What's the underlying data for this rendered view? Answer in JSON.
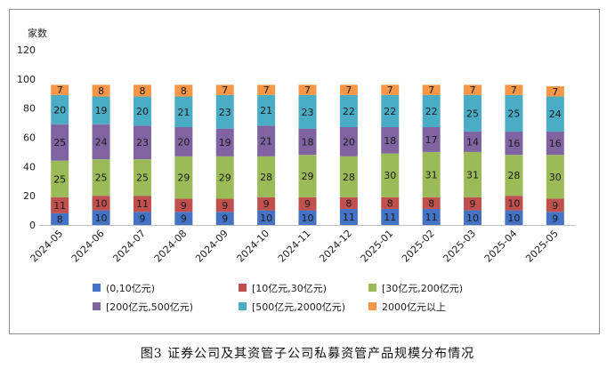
{
  "caption": "图3   证券公司及其资管子公司私募资管产品规模分布情况",
  "chart_data": {
    "type": "bar",
    "stacked": true,
    "ylabel": "家数",
    "ylim": [
      0,
      120
    ],
    "yticks": [
      0,
      20,
      40,
      60,
      80,
      100,
      120
    ],
    "categories": [
      "2024-05",
      "2024-06",
      "2024-07",
      "2024-08",
      "2024-09",
      "2024-10",
      "2024-11",
      "2024-12",
      "2025-01",
      "2025-02",
      "2025-03",
      "2025-04",
      "2025-05"
    ],
    "series": [
      {
        "name": "(0,10亿元)",
        "color": "#4472C4",
        "values": [
          8,
          10,
          9,
          9,
          9,
          10,
          10,
          11,
          11,
          11,
          10,
          10,
          9
        ]
      },
      {
        "name": "[10亿元,30亿元)",
        "color": "#C0504D",
        "values": [
          11,
          10,
          11,
          9,
          9,
          9,
          9,
          8,
          8,
          8,
          9,
          10,
          9
        ]
      },
      {
        "name": "[30亿元,200亿元)",
        "color": "#9BBB59",
        "values": [
          25,
          25,
          25,
          29,
          29,
          28,
          29,
          28,
          30,
          31,
          31,
          28,
          30
        ]
      },
      {
        "name": "[200亿元,500亿元)",
        "color": "#8064A2",
        "values": [
          25,
          24,
          23,
          20,
          19,
          21,
          18,
          20,
          18,
          17,
          14,
          16,
          16
        ]
      },
      {
        "name": "[500亿元,2000亿元)",
        "color": "#4BACC6",
        "values": [
          20,
          19,
          20,
          21,
          23,
          21,
          23,
          22,
          22,
          22,
          25,
          25,
          24
        ]
      },
      {
        "name": "2000亿元以上",
        "color": "#F79646",
        "values": [
          7,
          8,
          8,
          8,
          7,
          7,
          7,
          7,
          7,
          7,
          7,
          7,
          7
        ]
      }
    ],
    "legend_position": "bottom",
    "grid": false
  }
}
